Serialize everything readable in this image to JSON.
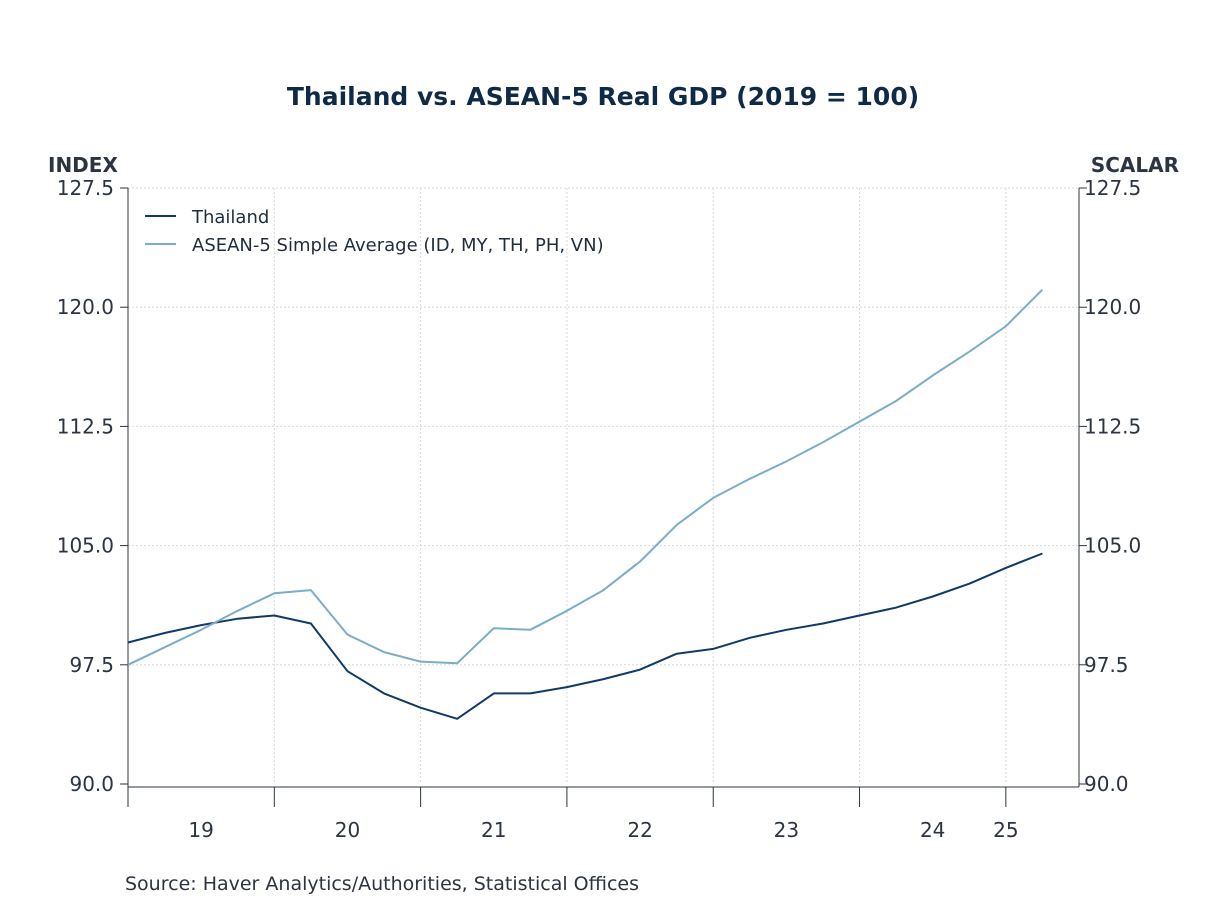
{
  "chart_data": {
    "type": "line",
    "title": "Thailand vs. ASEAN-5 Real GDP (2019 = 100)",
    "left_axis_label": "INDEX",
    "right_axis_label": "SCALAR",
    "ylim": [
      90,
      127.5
    ],
    "y_ticks": [
      "90.0",
      "97.5",
      "105.0",
      "112.5",
      "120.0",
      "127.5"
    ],
    "y_tick_values": [
      90,
      97.5,
      105,
      112.5,
      120,
      127.5
    ],
    "x_ticks": [
      "19",
      "20",
      "21",
      "22",
      "23",
      "24",
      "25"
    ],
    "x_tick_positions": [
      2019.5,
      2020.5,
      2021.5,
      2022.5,
      2023.5,
      2024.5,
      2025.0
    ],
    "x_boundaries": [
      2020,
      2021,
      2022,
      2023,
      2024,
      2025
    ],
    "xlim": [
      2019.0,
      2025.5
    ],
    "grid": true,
    "legend_position": "top-left",
    "x": [
      2019.0,
      2019.25,
      2019.5,
      2019.75,
      2020.0,
      2020.25,
      2020.5,
      2020.75,
      2021.0,
      2021.25,
      2021.5,
      2021.75,
      2022.0,
      2022.25,
      2022.5,
      2022.75,
      2023.0,
      2023.25,
      2023.5,
      2023.75,
      2024.0,
      2024.25,
      2024.5,
      2024.75,
      2025.0,
      2025.25
    ],
    "series": [
      {
        "name": "Thailand",
        "color": "#0f3b66",
        "values": [
          98.9,
          99.5,
          100.0,
          100.4,
          100.6,
          100.1,
          97.1,
          95.7,
          94.8,
          94.1,
          95.7,
          95.7,
          96.1,
          96.6,
          97.2,
          98.2,
          98.5,
          99.2,
          99.7,
          100.1,
          100.6,
          101.1,
          101.8,
          102.6,
          103.6,
          104.5
        ]
      },
      {
        "name": "ASEAN-5 Simple Average (ID, MY, TH, PH, VN)",
        "color": "#7badc9",
        "values": [
          97.5,
          98.6,
          99.7,
          100.9,
          102.0,
          102.2,
          99.4,
          98.3,
          97.7,
          97.6,
          99.8,
          99.7,
          100.9,
          102.2,
          104.0,
          106.3,
          108.0,
          109.2,
          110.3,
          111.5,
          112.8,
          114.1,
          115.7,
          117.2,
          118.8,
          121.1
        ]
      }
    ]
  },
  "source": "Source:  Haver Analytics/Authorities, Statistical Offices"
}
